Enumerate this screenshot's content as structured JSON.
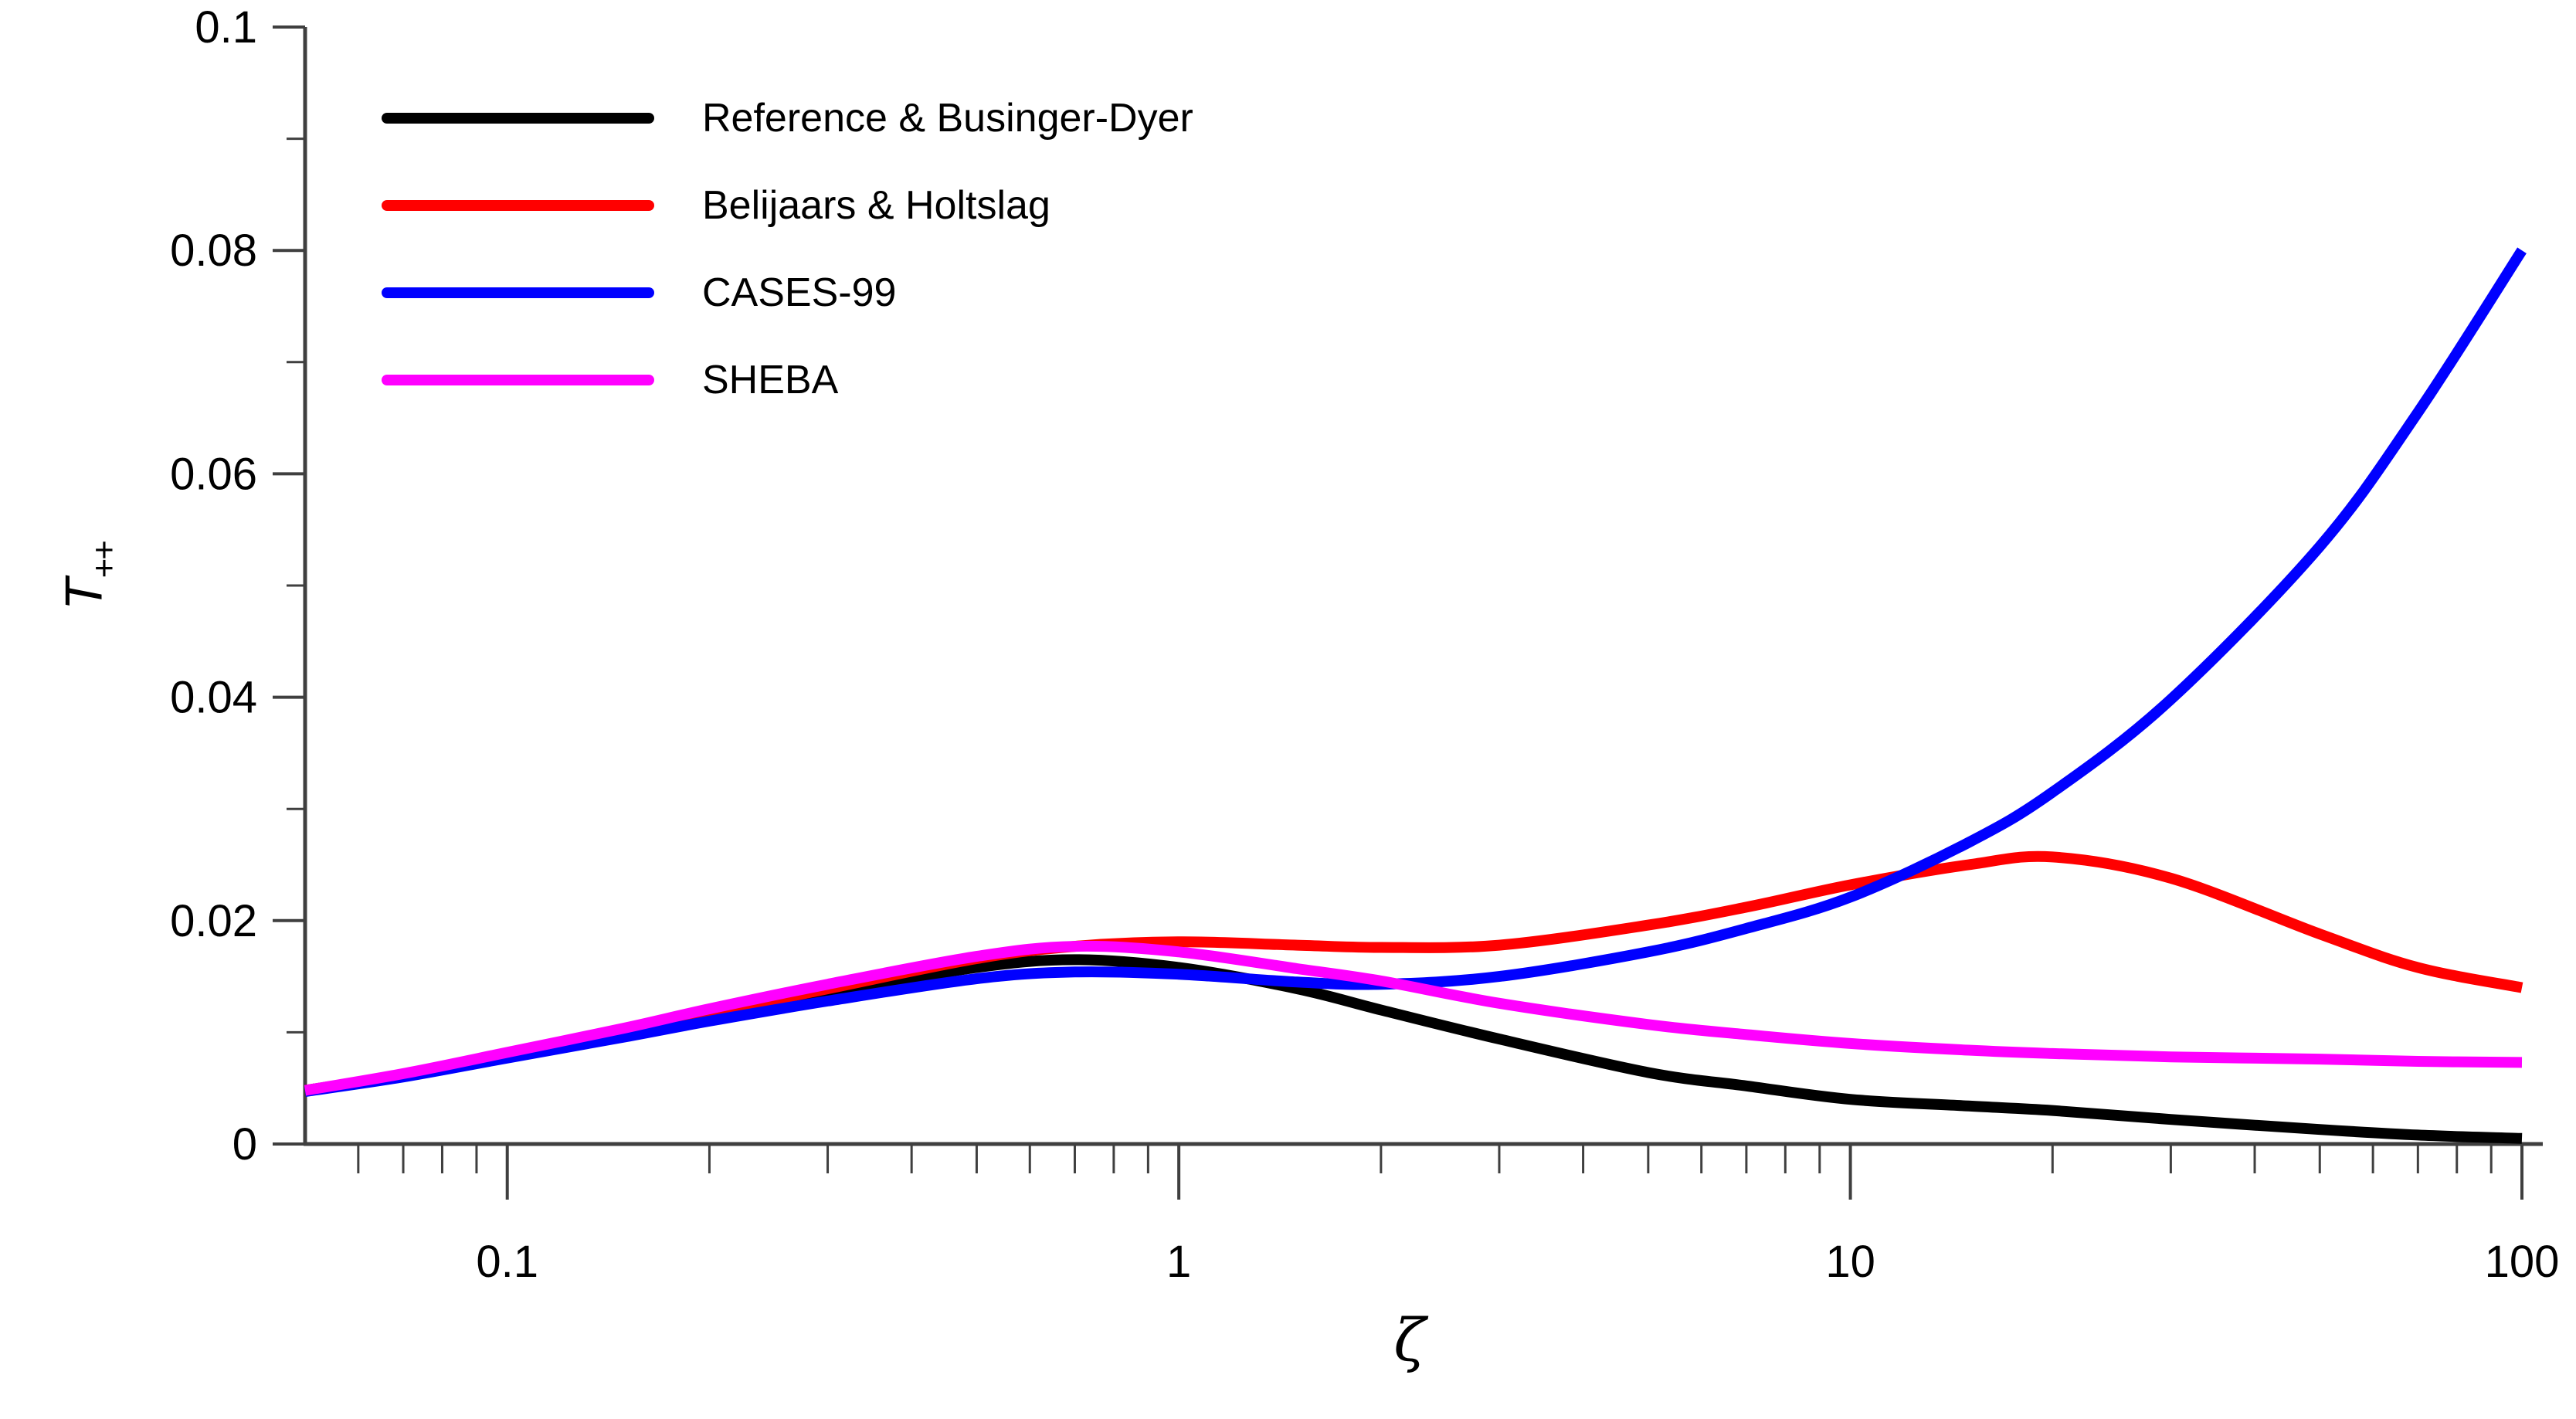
{
  "figure": {
    "background": "#ffffff",
    "axis_color": "#3f3f3f",
    "tick_color": "#3f3f3f",
    "text_color": "#000000"
  },
  "labels": {
    "ylabel_main": "T",
    "ylabel_sub": "++",
    "xlabel": "ζ"
  },
  "chart_data": {
    "type": "line",
    "x_scale": "log",
    "xlim": [
      0.05,
      100
    ],
    "ylim": [
      0,
      0.1
    ],
    "xlabel": "ζ",
    "ylabel": "T++",
    "grid": false,
    "legend_position": "upper-left-inside",
    "x_axis": {
      "major_tick_values": [
        0.1,
        1,
        10,
        100
      ],
      "major_tick_labels": [
        "0.1",
        "1",
        "10",
        "100"
      ],
      "minor_tick_values": [
        0.06,
        0.07,
        0.08,
        0.09,
        0.2,
        0.3,
        0.4,
        0.5,
        0.6,
        0.7,
        0.8,
        0.9,
        2,
        3,
        4,
        5,
        6,
        7,
        8,
        9,
        20,
        30,
        40,
        50,
        60,
        70,
        80,
        90
      ]
    },
    "y_axis": {
      "major_tick_values": [
        0,
        0.02,
        0.04,
        0.06,
        0.08,
        0.1
      ],
      "major_tick_labels": [
        "0",
        "0.02",
        "0.04",
        "0.06",
        "0.08",
        "0.1"
      ],
      "minor_tick_values": [
        0.01,
        0.03,
        0.05,
        0.07,
        0.09
      ]
    },
    "x": [
      0.05,
      0.07,
      0.1,
      0.15,
      0.2,
      0.3,
      0.5,
      0.7,
      1,
      1.5,
      2,
      3,
      5,
      7,
      10,
      15,
      20,
      30,
      50,
      70,
      100
    ],
    "series": [
      {
        "name": "reference-businger-dyer",
        "label": "Reference & Businger-Dyer",
        "color": "#000000",
        "values": [
          0.0048,
          0.0062,
          0.008,
          0.01,
          0.0115,
          0.0135,
          0.0158,
          0.0165,
          0.0158,
          0.0139,
          0.012,
          0.0094,
          0.0064,
          0.0052,
          0.004,
          0.0034,
          0.003,
          0.0022,
          0.0013,
          0.0008,
          0.0005
        ]
      },
      {
        "name": "belijaars-holtslag",
        "label": "Belijaars & Holtslag",
        "color": "#ff0000",
        "values": [
          0.0048,
          0.0062,
          0.008,
          0.0101,
          0.0117,
          0.0139,
          0.0166,
          0.0177,
          0.0181,
          0.0178,
          0.0176,
          0.0178,
          0.0196,
          0.0212,
          0.0232,
          0.025,
          0.0257,
          0.0238,
          0.0188,
          0.0158,
          0.014
        ]
      },
      {
        "name": "cases-99",
        "label": "CASES-99",
        "color": "#0000ff",
        "values": [
          0.0047,
          0.006,
          0.0077,
          0.0096,
          0.011,
          0.0128,
          0.0148,
          0.0154,
          0.0152,
          0.0145,
          0.0143,
          0.015,
          0.0172,
          0.0193,
          0.0221,
          0.027,
          0.0315,
          0.0398,
          0.0535,
          0.0655,
          0.08
        ]
      },
      {
        "name": "sheba",
        "label": "SHEBA",
        "color": "#ff00ff",
        "values": [
          0.0048,
          0.0063,
          0.0082,
          0.0104,
          0.0121,
          0.0143,
          0.0168,
          0.0177,
          0.0172,
          0.0157,
          0.0146,
          0.0126,
          0.0107,
          0.0098,
          0.009,
          0.0084,
          0.0081,
          0.0078,
          0.0076,
          0.0074,
          0.0073
        ]
      }
    ]
  }
}
